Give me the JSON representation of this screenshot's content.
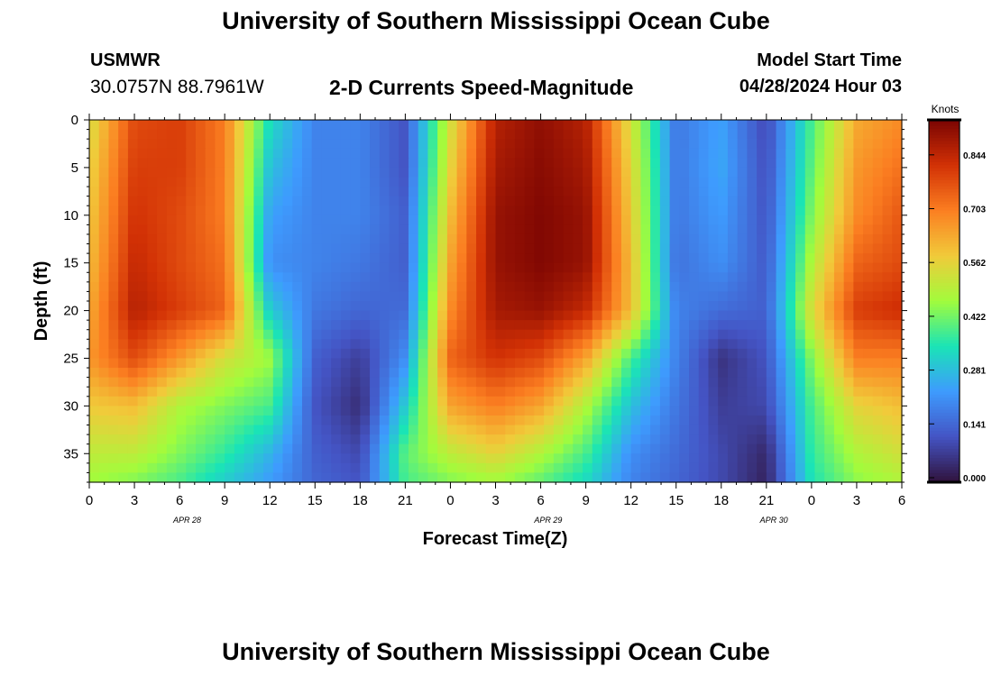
{
  "header": {
    "title": "University of Southern Mississippi Ocean Cube",
    "station": "USMWR",
    "coordinates": "30.0757N  88.7961W",
    "subtitle": "2-D Currents Speed-Magnitude",
    "model_start_label": "Model Start Time",
    "model_start_value": "04/28/2024 Hour 03"
  },
  "footer": {
    "title": "University of Southern Mississippi Ocean Cube"
  },
  "chart_data": {
    "type": "heatmap",
    "title": "2-D Currents Speed-Magnitude",
    "xlabel": "Forecast Time(Z)",
    "ylabel": "Depth (ft)",
    "x_tick_labels": [
      "0",
      "3",
      "6",
      "9",
      "12",
      "15",
      "18",
      "21",
      "0",
      "3",
      "6",
      "9",
      "12",
      "15",
      "18",
      "21",
      "0",
      "3",
      "6"
    ],
    "date_labels": [
      "APR 28",
      "APR 29",
      "APR 30"
    ],
    "y_ticks": [
      0,
      5,
      10,
      15,
      20,
      25,
      30,
      35
    ],
    "ylim": [
      0,
      38
    ],
    "y_inverted": true,
    "colorbar": {
      "label": "Knots",
      "tick_labels": [
        "0.000",
        "0.141",
        "0.281",
        "0.422",
        "0.562",
        "0.703",
        "0.844"
      ],
      "range": [
        0,
        0.96
      ],
      "colors": [
        "#30123b",
        "#4454c4",
        "#3e9bfe",
        "#1ae4b6",
        "#a2fc3c",
        "#f1ca3a",
        "#fb7e21",
        "#d23105",
        "#7a0403"
      ]
    },
    "depth_rows": [
      0,
      5,
      10,
      15,
      20,
      25,
      30,
      35,
      38
    ],
    "time_points_hours": [
      0,
      3,
      6,
      9,
      12,
      15,
      18,
      21,
      24,
      27,
      30,
      33,
      36,
      39,
      42,
      45,
      48,
      51,
      54
    ],
    "values_knots": [
      [
        0.55,
        0.8,
        0.82,
        0.72,
        0.35,
        0.2,
        0.2,
        0.12,
        0.55,
        0.88,
        0.93,
        0.88,
        0.55,
        0.18,
        0.25,
        0.1,
        0.4,
        0.65,
        0.7
      ],
      [
        0.58,
        0.82,
        0.82,
        0.72,
        0.3,
        0.2,
        0.2,
        0.12,
        0.58,
        0.9,
        0.94,
        0.9,
        0.58,
        0.18,
        0.26,
        0.11,
        0.42,
        0.68,
        0.74
      ],
      [
        0.6,
        0.84,
        0.8,
        0.72,
        0.25,
        0.2,
        0.2,
        0.14,
        0.62,
        0.92,
        0.95,
        0.92,
        0.6,
        0.18,
        0.24,
        0.12,
        0.45,
        0.7,
        0.78
      ],
      [
        0.62,
        0.86,
        0.8,
        0.74,
        0.22,
        0.2,
        0.18,
        0.14,
        0.66,
        0.92,
        0.95,
        0.92,
        0.62,
        0.17,
        0.22,
        0.13,
        0.5,
        0.76,
        0.8
      ],
      [
        0.65,
        0.88,
        0.82,
        0.76,
        0.32,
        0.18,
        0.15,
        0.16,
        0.7,
        0.9,
        0.92,
        0.86,
        0.62,
        0.2,
        0.16,
        0.14,
        0.56,
        0.82,
        0.85
      ],
      [
        0.68,
        0.8,
        0.68,
        0.55,
        0.48,
        0.14,
        0.08,
        0.22,
        0.76,
        0.84,
        0.8,
        0.66,
        0.4,
        0.2,
        0.06,
        0.12,
        0.45,
        0.72,
        0.72
      ],
      [
        0.6,
        0.62,
        0.5,
        0.45,
        0.4,
        0.12,
        0.05,
        0.32,
        0.66,
        0.72,
        0.66,
        0.5,
        0.3,
        0.18,
        0.08,
        0.1,
        0.4,
        0.58,
        0.62
      ],
      [
        0.52,
        0.52,
        0.45,
        0.38,
        0.28,
        0.14,
        0.1,
        0.42,
        0.52,
        0.58,
        0.5,
        0.4,
        0.22,
        0.16,
        0.1,
        0.04,
        0.38,
        0.5,
        0.55
      ],
      [
        0.48,
        0.45,
        0.4,
        0.32,
        0.24,
        0.15,
        0.12,
        0.4,
        0.45,
        0.48,
        0.42,
        0.34,
        0.2,
        0.15,
        0.1,
        0.03,
        0.36,
        0.46,
        0.5
      ]
    ]
  }
}
